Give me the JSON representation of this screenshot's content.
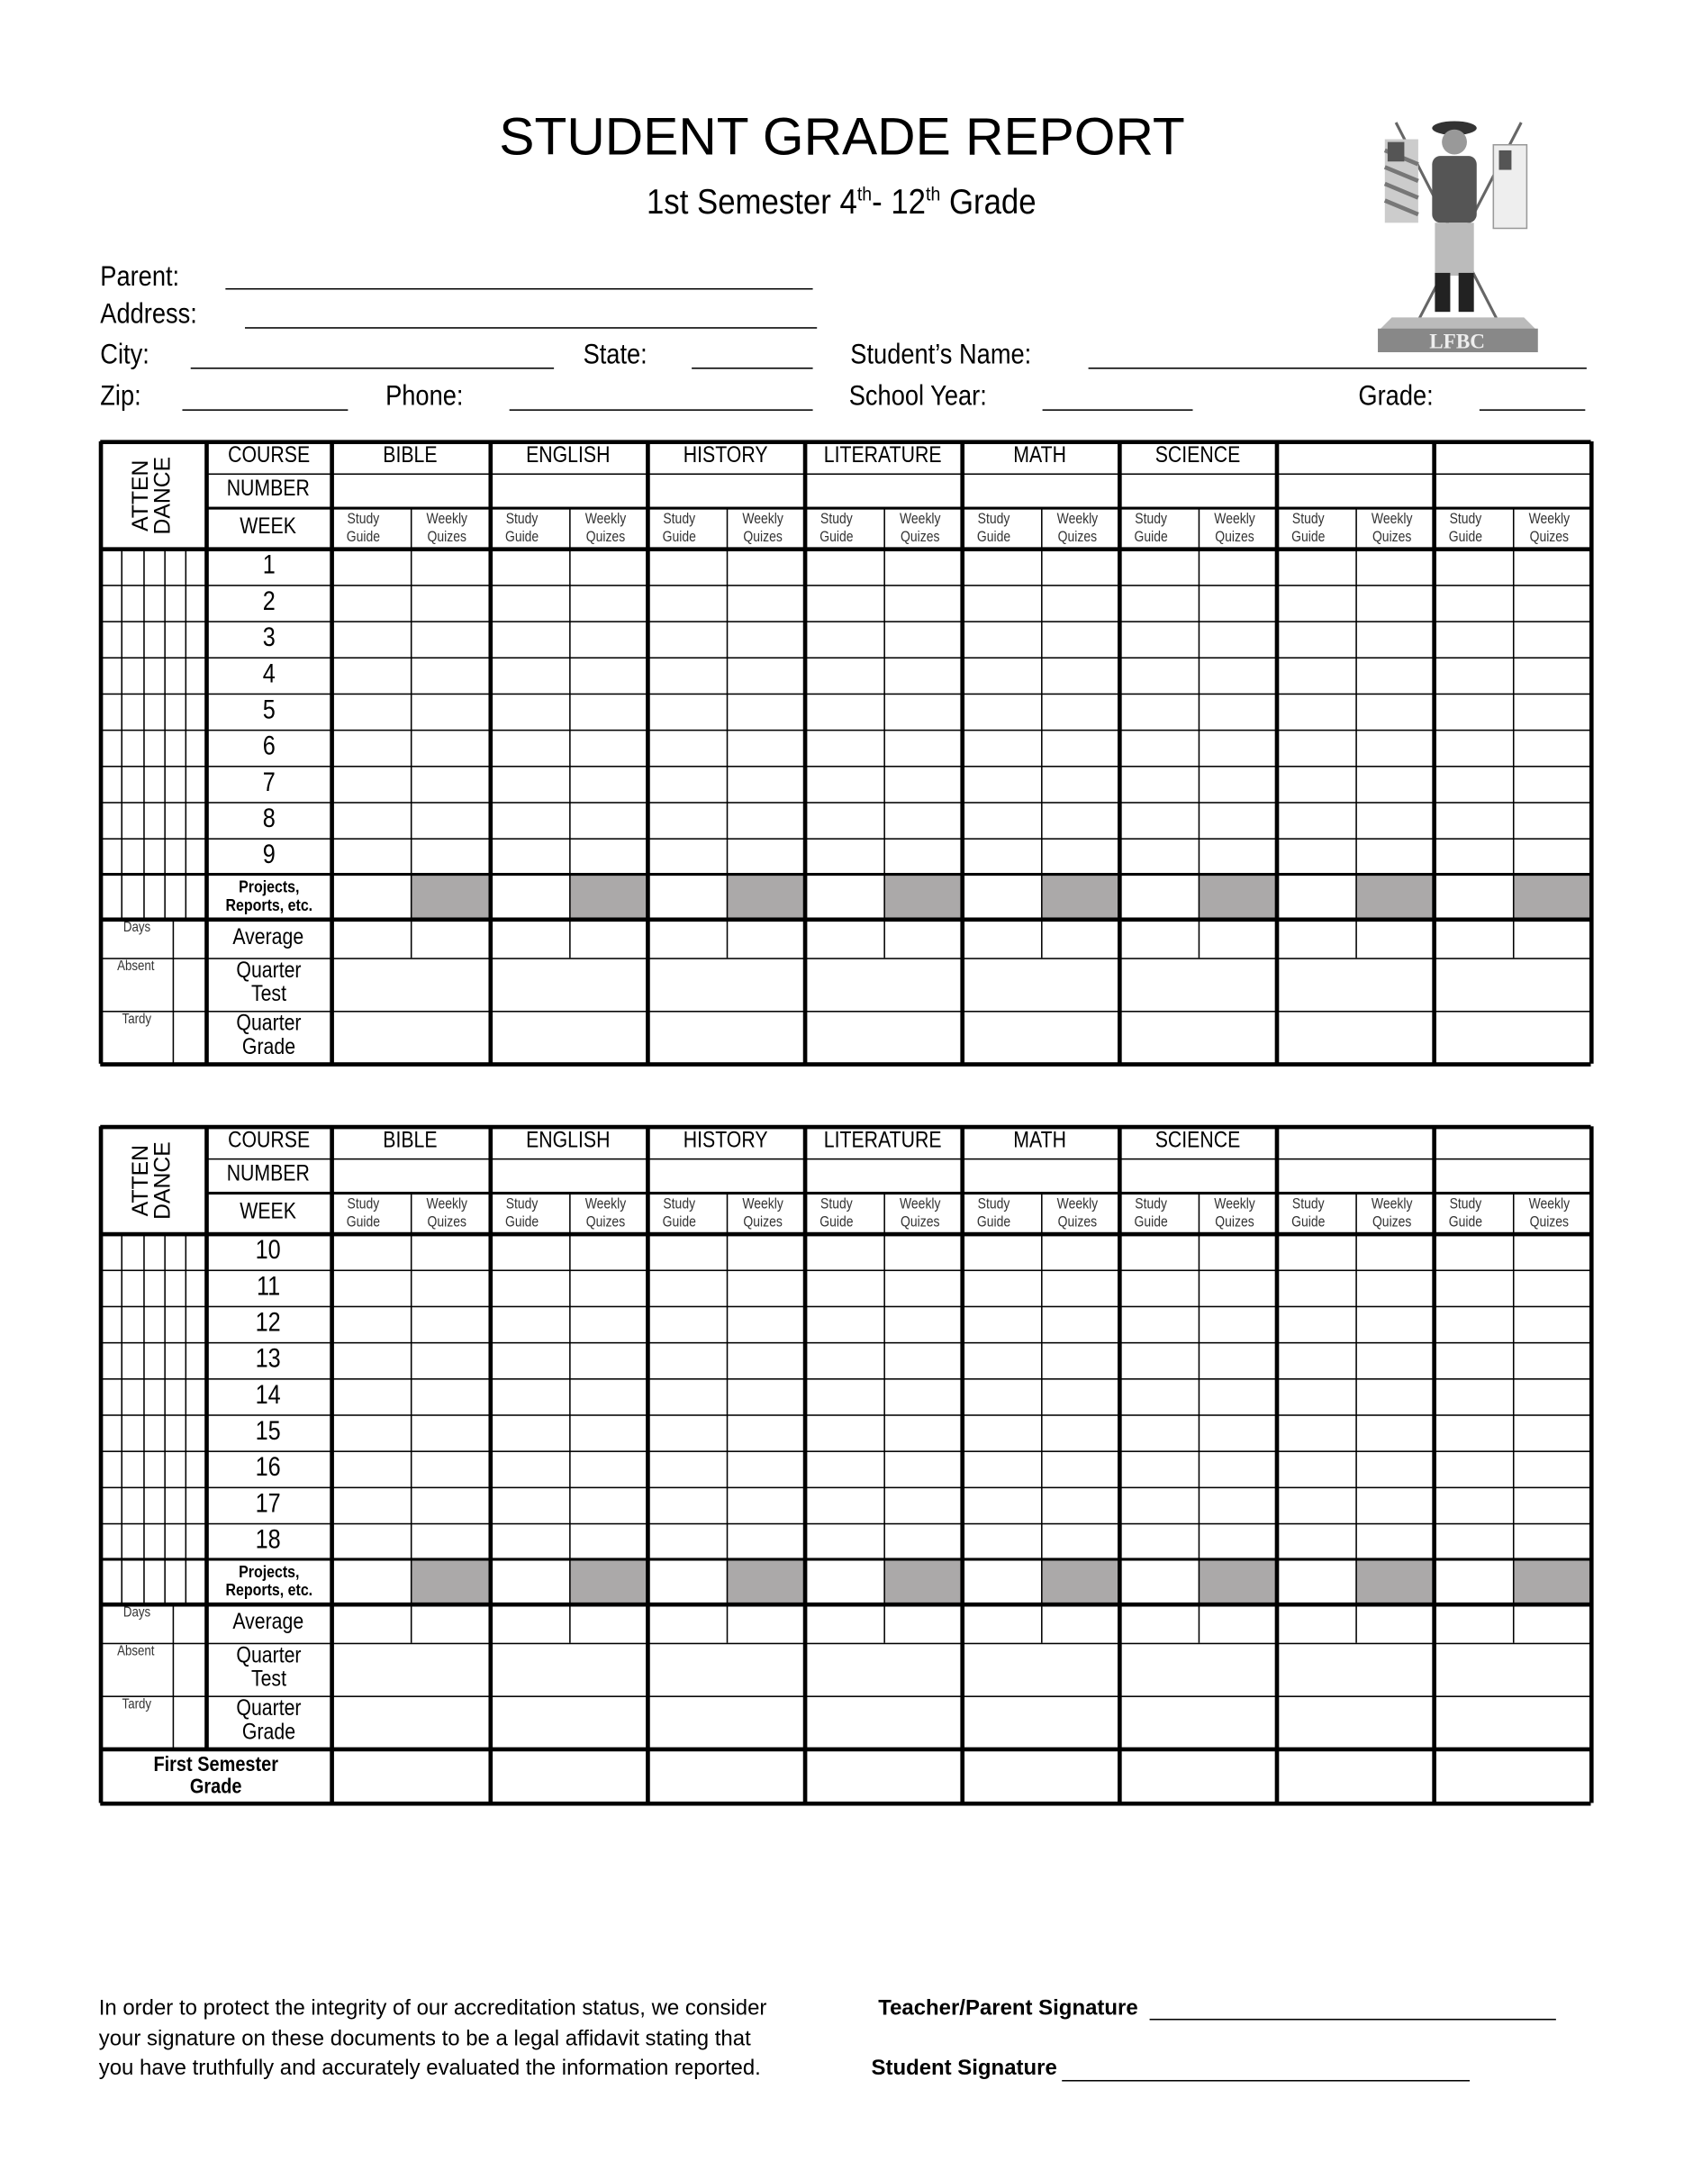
{
  "header": {
    "title": "STUDENT GRADE REPORT",
    "subtitle_prefix": "1st Semester 4",
    "subtitle_sup1": "th",
    "subtitle_mid": "- 12",
    "subtitle_sup2": "th",
    "subtitle_suffix": " Grade",
    "logo_text": "LFBC"
  },
  "form": {
    "parent": "Parent:",
    "address": "Address:",
    "city": "City:",
    "state": "State:",
    "student_name": "Student’s Name:",
    "zip": "Zip:",
    "phone": "Phone:",
    "school_year": "School Year:",
    "grade": "Grade:"
  },
  "table": {
    "attendance_label": "ATTEN\nDANCE",
    "course": "COURSE",
    "number": "NUMBER",
    "week": "WEEK",
    "subjects": [
      "BIBLE",
      "ENGLISH",
      "HISTORY",
      "LITERATURE",
      "MATH",
      "SCIENCE",
      "",
      ""
    ],
    "sub_cols": [
      "Study\nGuide",
      "Weekly\nQuizes"
    ],
    "projects": "Projects,\nReports, etc.",
    "days": "Days",
    "absent": "Absent",
    "tardy": "Tardy",
    "average": "Average",
    "quarter_test": "Quarter\nTest",
    "quarter_grade": "Quarter\nGrade",
    "first_semester_grade": "First Semester\nGrade",
    "weeks_q1": [
      "1",
      "2",
      "3",
      "4",
      "5",
      "6",
      "7",
      "8",
      "9"
    ],
    "weeks_q2": [
      "10",
      "11",
      "12",
      "13",
      "14",
      "15",
      "16",
      "17",
      "18"
    ],
    "shade_color": "#aba9a9"
  },
  "footer": {
    "notice_lines": [
      "In order to protect the integrity of our accreditation status, we consider",
      "your signature on these documents to be a legal affidavit stating that",
      "you have truthfully and accurately evaluated the information reported."
    ],
    "teacher_signature": "Teacher/Parent Signature",
    "student_signature": "Student Signature"
  }
}
